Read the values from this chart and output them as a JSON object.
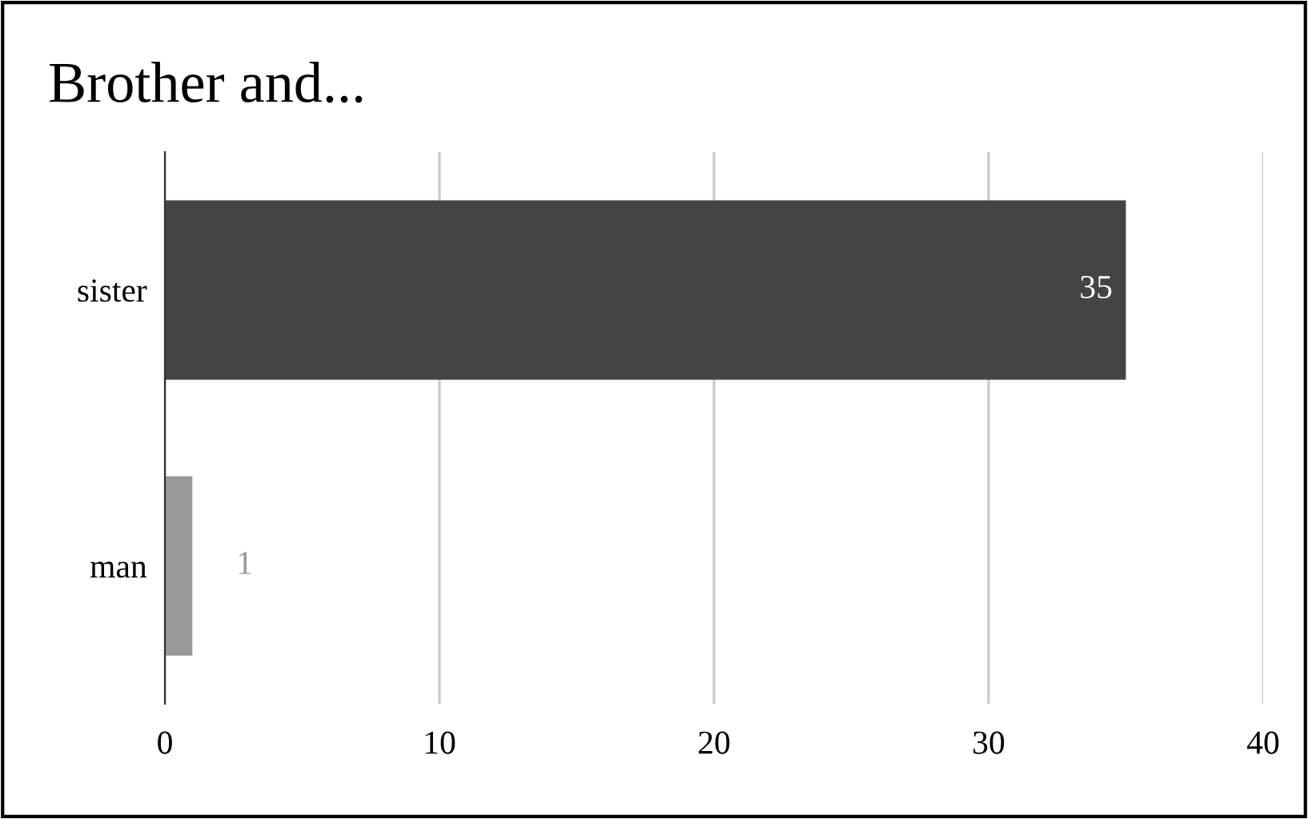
{
  "chart_data": {
    "type": "bar",
    "orientation": "horizontal",
    "title": "Brother and...",
    "categories": [
      "sister",
      "man"
    ],
    "values": [
      35,
      1
    ],
    "colors": [
      "#444444",
      "#999999"
    ],
    "xlim": [
      0,
      40
    ],
    "xticks": [
      0,
      10,
      20,
      30,
      40
    ],
    "grid": "x",
    "data_labels": true,
    "legend": false
  }
}
